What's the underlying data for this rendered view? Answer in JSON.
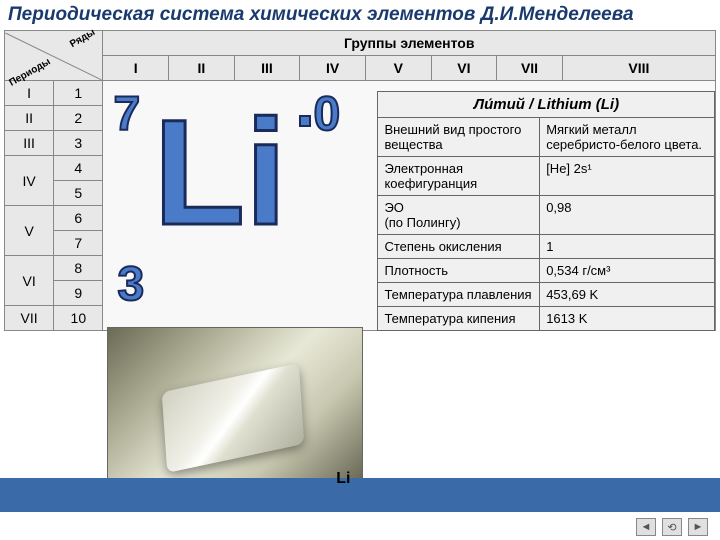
{
  "title": "Периодическая система химических элементов Д.И.Менделеева",
  "corner": {
    "periods": "Периоды",
    "rows": "Ряды"
  },
  "groups_header": "Группы элементов",
  "groups": [
    "I",
    "II",
    "III",
    "IV",
    "V",
    "VI",
    "VII",
    "VIII"
  ],
  "periods": [
    {
      "period": "I",
      "rows": [
        "1"
      ]
    },
    {
      "period": "II",
      "rows": [
        "2"
      ]
    },
    {
      "period": "III",
      "rows": [
        "3"
      ]
    },
    {
      "period": "IV",
      "rows": [
        "4",
        "5"
      ]
    },
    {
      "period": "V",
      "rows": [
        "6",
        "7"
      ]
    },
    {
      "period": "VI",
      "rows": [
        "8",
        "9"
      ]
    },
    {
      "period": "VII",
      "rows": [
        "10"
      ]
    }
  ],
  "element": {
    "symbol": "Li",
    "mass": "7",
    "charge": "0",
    "atomic": "3",
    "photo_label": "Li"
  },
  "props": {
    "header": "Ли́тий / Lithium (Li)",
    "rows": [
      {
        "k": "Внешний вид простого вещества",
        "v": "Мягкий металл серебристо-белого цвета."
      },
      {
        "k": "Электронная коефигуранция",
        "v": "[He] 2s¹"
      },
      {
        "k": " ЭО\n(по Полингу)",
        "v": "0,98"
      },
      {
        "k": "Степень окисления",
        "v": "1"
      },
      {
        "k": "Плотность",
        "v": "0,534 г/см³"
      },
      {
        "k": "Температура плавления",
        "v": "453,69 K"
      },
      {
        "k": "Температура кипения",
        "v": "1613 K"
      }
    ]
  },
  "colors": {
    "title": "#1a3a6e",
    "accent": "#4a7bc8",
    "stroke": "#1a2a5a",
    "bar": "#3a6aa8",
    "cell_bg": "#e8e8e8"
  },
  "nav": {
    "prev": "◄",
    "home": "⟲",
    "next": "►"
  }
}
